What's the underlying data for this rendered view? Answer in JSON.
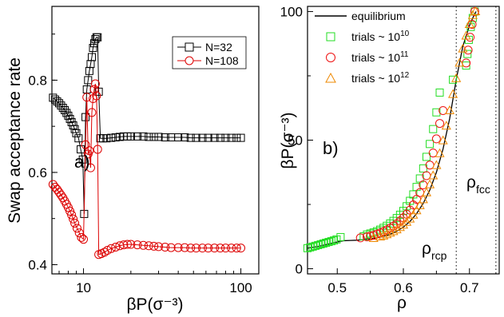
{
  "chart_data": [
    {
      "type": "scatter",
      "panel_label": "a)",
      "xlabel": "βP(σ⁻³)",
      "ylabel": "Swap acceptance rate",
      "x_scale": "log",
      "xlim": [
        6.3,
        130
      ],
      "ylim": [
        0.38,
        0.96
      ],
      "x_ticks": [
        10,
        100
      ],
      "x_tick_labels": [
        "10",
        "100"
      ],
      "y_ticks": [
        0.4,
        0.6,
        0.8
      ],
      "y_tick_labels": [
        "0.4",
        "0.6",
        "0.8"
      ],
      "legend_position": "top-right",
      "grid": false,
      "series": [
        {
          "name": "N=32",
          "color": "#000000",
          "marker": "square",
          "line": true,
          "points": [
            [
              6.4,
              0.762
            ],
            [
              6.6,
              0.758
            ],
            [
              6.8,
              0.754
            ],
            [
              7.0,
              0.75
            ],
            [
              7.2,
              0.745
            ],
            [
              7.4,
              0.74
            ],
            [
              7.6,
              0.735
            ],
            [
              7.8,
              0.729
            ],
            [
              8.0,
              0.723
            ],
            [
              8.2,
              0.716
            ],
            [
              8.4,
              0.709
            ],
            [
              8.6,
              0.702
            ],
            [
              8.8,
              0.694
            ],
            [
              9.0,
              0.685
            ],
            [
              9.3,
              0.674
            ],
            [
              9.6,
              0.65
            ],
            [
              9.9,
              0.628
            ],
            [
              10.1,
              0.51
            ],
            [
              10.3,
              0.72
            ],
            [
              10.5,
              0.78
            ],
            [
              10.7,
              0.8
            ],
            [
              10.9,
              0.82
            ],
            [
              11.1,
              0.835
            ],
            [
              11.3,
              0.85
            ],
            [
              11.5,
              0.87
            ],
            [
              11.7,
              0.88
            ],
            [
              11.9,
              0.889
            ],
            [
              12.1,
              0.893
            ],
            [
              12.3,
              0.893
            ],
            [
              12.5,
              0.775
            ],
            [
              12.8,
              0.674
            ],
            [
              13.3,
              0.674
            ],
            [
              14,
              0.674
            ],
            [
              15,
              0.675
            ],
            [
              16,
              0.676
            ],
            [
              17,
              0.677
            ],
            [
              18,
              0.678
            ],
            [
              19,
              0.678
            ],
            [
              20,
              0.678
            ],
            [
              22,
              0.678
            ],
            [
              24,
              0.678
            ],
            [
              26,
              0.677
            ],
            [
              28,
              0.677
            ],
            [
              30,
              0.677
            ],
            [
              33,
              0.676
            ],
            [
              36,
              0.676
            ],
            [
              40,
              0.676
            ],
            [
              44,
              0.676
            ],
            [
              48,
              0.675
            ],
            [
              52,
              0.675
            ],
            [
              57,
              0.675
            ],
            [
              62,
              0.675
            ],
            [
              68,
              0.675
            ],
            [
              74,
              0.675
            ],
            [
              80,
              0.675
            ],
            [
              87,
              0.675
            ],
            [
              94,
              0.675
            ],
            [
              100,
              0.675
            ]
          ]
        },
        {
          "name": "N=108",
          "color": "#dd0000",
          "marker": "circle",
          "line": true,
          "points": [
            [
              6.4,
              0.574
            ],
            [
              6.6,
              0.568
            ],
            [
              6.8,
              0.563
            ],
            [
              7.0,
              0.557
            ],
            [
              7.2,
              0.551
            ],
            [
              7.4,
              0.545
            ],
            [
              7.6,
              0.538
            ],
            [
              7.8,
              0.531
            ],
            [
              8.0,
              0.524
            ],
            [
              8.2,
              0.516
            ],
            [
              8.4,
              0.508
            ],
            [
              8.6,
              0.499
            ],
            [
              8.8,
              0.49
            ],
            [
              9.1,
              0.479
            ],
            [
              9.4,
              0.469
            ],
            [
              9.7,
              0.459
            ],
            [
              10.0,
              0.455
            ],
            [
              10.3,
              0.66
            ],
            [
              10.5,
              0.763
            ],
            [
              10.7,
              0.64
            ],
            [
              10.9,
              0.647
            ],
            [
              11.1,
              0.61
            ],
            [
              11.3,
              0.73
            ],
            [
              11.5,
              0.76
            ],
            [
              11.7,
              0.78
            ],
            [
              11.9,
              0.792
            ],
            [
              12.1,
              0.766
            ],
            [
              12.3,
              0.65
            ],
            [
              12.5,
              0.422
            ],
            [
              13.0,
              0.424
            ],
            [
              13.6,
              0.427
            ],
            [
              14.2,
              0.431
            ],
            [
              15,
              0.435
            ],
            [
              16,
              0.438
            ],
            [
              17,
              0.441
            ],
            [
              18,
              0.443
            ],
            [
              19,
              0.444
            ],
            [
              20,
              0.444
            ],
            [
              22,
              0.443
            ],
            [
              24,
              0.442
            ],
            [
              26,
              0.441
            ],
            [
              28,
              0.44
            ],
            [
              30,
              0.439
            ],
            [
              33,
              0.438
            ],
            [
              36,
              0.437
            ],
            [
              40,
              0.437
            ],
            [
              44,
              0.437
            ],
            [
              48,
              0.436
            ],
            [
              52,
              0.436
            ],
            [
              57,
              0.436
            ],
            [
              62,
              0.436
            ],
            [
              68,
              0.436
            ],
            [
              74,
              0.436
            ],
            [
              80,
              0.436
            ],
            [
              87,
              0.436
            ],
            [
              94,
              0.436
            ],
            [
              100,
              0.436
            ]
          ]
        }
      ]
    },
    {
      "type": "scatter",
      "panel_label": "b)",
      "xlabel": "ρ",
      "ylabel": "βP(σ⁻³)",
      "xlim": [
        0.455,
        0.745
      ],
      "ylim": [
        -2,
        102
      ],
      "x_ticks": [
        0.5,
        0.6,
        0.7
      ],
      "x_tick_labels": [
        "0.5",
        "0.6",
        "0.7"
      ],
      "y_ticks": [
        0,
        50,
        100
      ],
      "y_tick_labels": [
        "0",
        "50",
        "100"
      ],
      "legend_position": "top-left",
      "grid": false,
      "vertical_lines": [
        {
          "x": 0.68,
          "style": "dotted"
        },
        {
          "x": 0.74,
          "style": "dotted"
        }
      ],
      "annotations": [
        {
          "text": "ρ",
          "sub": "rcp"
        },
        {
          "text": "ρ",
          "sub": "fcc"
        }
      ],
      "series": [
        {
          "name": "equilibrium",
          "color": "#000000",
          "marker": "none",
          "line": true,
          "points": [
            [
              0.455,
              8.0
            ],
            [
              0.47,
              8.6
            ],
            [
              0.48,
              9.2
            ],
            [
              0.49,
              9.8
            ],
            [
              0.5,
              10.4
            ],
            [
              0.505,
              10.7
            ],
            [
              0.51,
              10.9
            ],
            [
              0.52,
              11.0
            ],
            [
              0.53,
              11.1
            ],
            [
              0.54,
              11.3
            ],
            [
              0.55,
              11.6
            ],
            [
              0.56,
              12.0
            ],
            [
              0.57,
              12.6
            ],
            [
              0.58,
              13.4
            ],
            [
              0.59,
              14.6
            ],
            [
              0.6,
              16.2
            ],
            [
              0.61,
              18.4
            ],
            [
              0.62,
              21.4
            ],
            [
              0.63,
              25.4
            ],
            [
              0.64,
              30.6
            ],
            [
              0.65,
              37.5
            ],
            [
              0.66,
              46.5
            ],
            [
              0.67,
              58.3
            ],
            [
              0.68,
              73.5
            ],
            [
              0.69,
              86.5
            ],
            [
              0.7,
              94.5
            ],
            [
              0.705,
              97.5
            ],
            [
              0.71,
              100.0
            ]
          ]
        },
        {
          "name": "trials ~ 10",
          "name_superscript": "10",
          "color": "#22dd22",
          "marker": "square",
          "line": false,
          "points": [
            [
              0.455,
              8.0
            ],
            [
              0.459,
              8.3
            ],
            [
              0.463,
              8.6
            ],
            [
              0.467,
              8.9
            ],
            [
              0.471,
              9.2
            ],
            [
              0.475,
              9.5
            ],
            [
              0.479,
              9.8
            ],
            [
              0.483,
              10.1
            ],
            [
              0.487,
              10.4
            ],
            [
              0.491,
              10.7
            ],
            [
              0.495,
              11.0
            ],
            [
              0.499,
              11.4
            ],
            [
              0.505,
              12.3
            ],
            [
              0.54,
              12.6
            ],
            [
              0.545,
              13.3
            ],
            [
              0.55,
              13.7
            ],
            [
              0.555,
              14.1
            ],
            [
              0.56,
              14.6
            ],
            [
              0.565,
              15.2
            ],
            [
              0.57,
              15.9
            ],
            [
              0.575,
              16.7
            ],
            [
              0.58,
              17.6
            ],
            [
              0.585,
              18.6
            ],
            [
              0.59,
              19.7
            ],
            [
              0.595,
              21.0
            ],
            [
              0.6,
              22.5
            ],
            [
              0.605,
              24.3
            ],
            [
              0.61,
              26.4
            ],
            [
              0.615,
              28.9
            ],
            [
              0.62,
              31.8
            ],
            [
              0.625,
              35.1
            ],
            [
              0.63,
              39.0
            ],
            [
              0.635,
              43.5
            ],
            [
              0.64,
              48.5
            ],
            [
              0.645,
              54.3
            ],
            [
              0.65,
              60.8
            ],
            [
              0.655,
              68.5
            ],
            [
              0.675,
              73.5
            ],
            [
              0.695,
              79.0
            ],
            [
              0.697,
              83.5
            ],
            [
              0.699,
              89.0
            ],
            [
              0.702,
              94.0
            ],
            [
              0.705,
              97.5
            ],
            [
              0.708,
              100.0
            ]
          ]
        },
        {
          "name": "trials ~ 10",
          "name_superscript": "11",
          "color": "#ee1111",
          "marker": "circle",
          "line": false,
          "points": [
            [
              0.535,
              12.0
            ],
            [
              0.545,
              12.4
            ],
            [
              0.55,
              12.7
            ],
            [
              0.555,
              13.0
            ],
            [
              0.56,
              13.5
            ],
            [
              0.565,
              13.9
            ],
            [
              0.57,
              14.5
            ],
            [
              0.575,
              15.1
            ],
            [
              0.58,
              15.8
            ],
            [
              0.585,
              16.6
            ],
            [
              0.59,
              17.5
            ],
            [
              0.595,
              18.6
            ],
            [
              0.6,
              19.8
            ],
            [
              0.605,
              21.2
            ],
            [
              0.61,
              22.8
            ],
            [
              0.615,
              24.8
            ],
            [
              0.62,
              27.0
            ],
            [
              0.625,
              29.6
            ],
            [
              0.63,
              32.6
            ],
            [
              0.635,
              36.2
            ],
            [
              0.64,
              40.3
            ],
            [
              0.645,
              45.0
            ],
            [
              0.65,
              50.5
            ],
            [
              0.655,
              56.5
            ],
            [
              0.66,
              61.5
            ],
            [
              0.695,
              80.0
            ],
            [
              0.698,
              85.0
            ],
            [
              0.701,
              90.0
            ],
            [
              0.704,
              95.0
            ],
            [
              0.708,
              100.0
            ]
          ]
        },
        {
          "name": "trials ~ 10",
          "name_superscript": "12",
          "color": "#ee8800",
          "marker": "triangle",
          "line": false,
          "points": [
            [
              0.555,
              11.8
            ],
            [
              0.565,
              12.4
            ],
            [
              0.57,
              12.8
            ],
            [
              0.575,
              13.3
            ],
            [
              0.58,
              13.9
            ],
            [
              0.585,
              14.5
            ],
            [
              0.59,
              15.2
            ],
            [
              0.595,
              16.1
            ],
            [
              0.6,
              17.0
            ],
            [
              0.605,
              18.1
            ],
            [
              0.61,
              19.4
            ],
            [
              0.615,
              20.9
            ],
            [
              0.62,
              22.6
            ],
            [
              0.625,
              24.6
            ],
            [
              0.63,
              26.9
            ],
            [
              0.635,
              29.6
            ],
            [
              0.64,
              32.7
            ],
            [
              0.645,
              36.2
            ],
            [
              0.65,
              40.2
            ],
            [
              0.655,
              44.8
            ],
            [
              0.66,
              49.8
            ],
            [
              0.665,
              55.5
            ],
            [
              0.67,
              61.5
            ],
            [
              0.675,
              67.8
            ],
            [
              0.68,
              74.0
            ],
            [
              0.685,
              80.0
            ],
            [
              0.69,
              85.5
            ],
            [
              0.695,
              90.5
            ],
            [
              0.7,
              95.0
            ],
            [
              0.705,
              98.5
            ],
            [
              0.709,
              100.0
            ]
          ]
        }
      ]
    }
  ]
}
